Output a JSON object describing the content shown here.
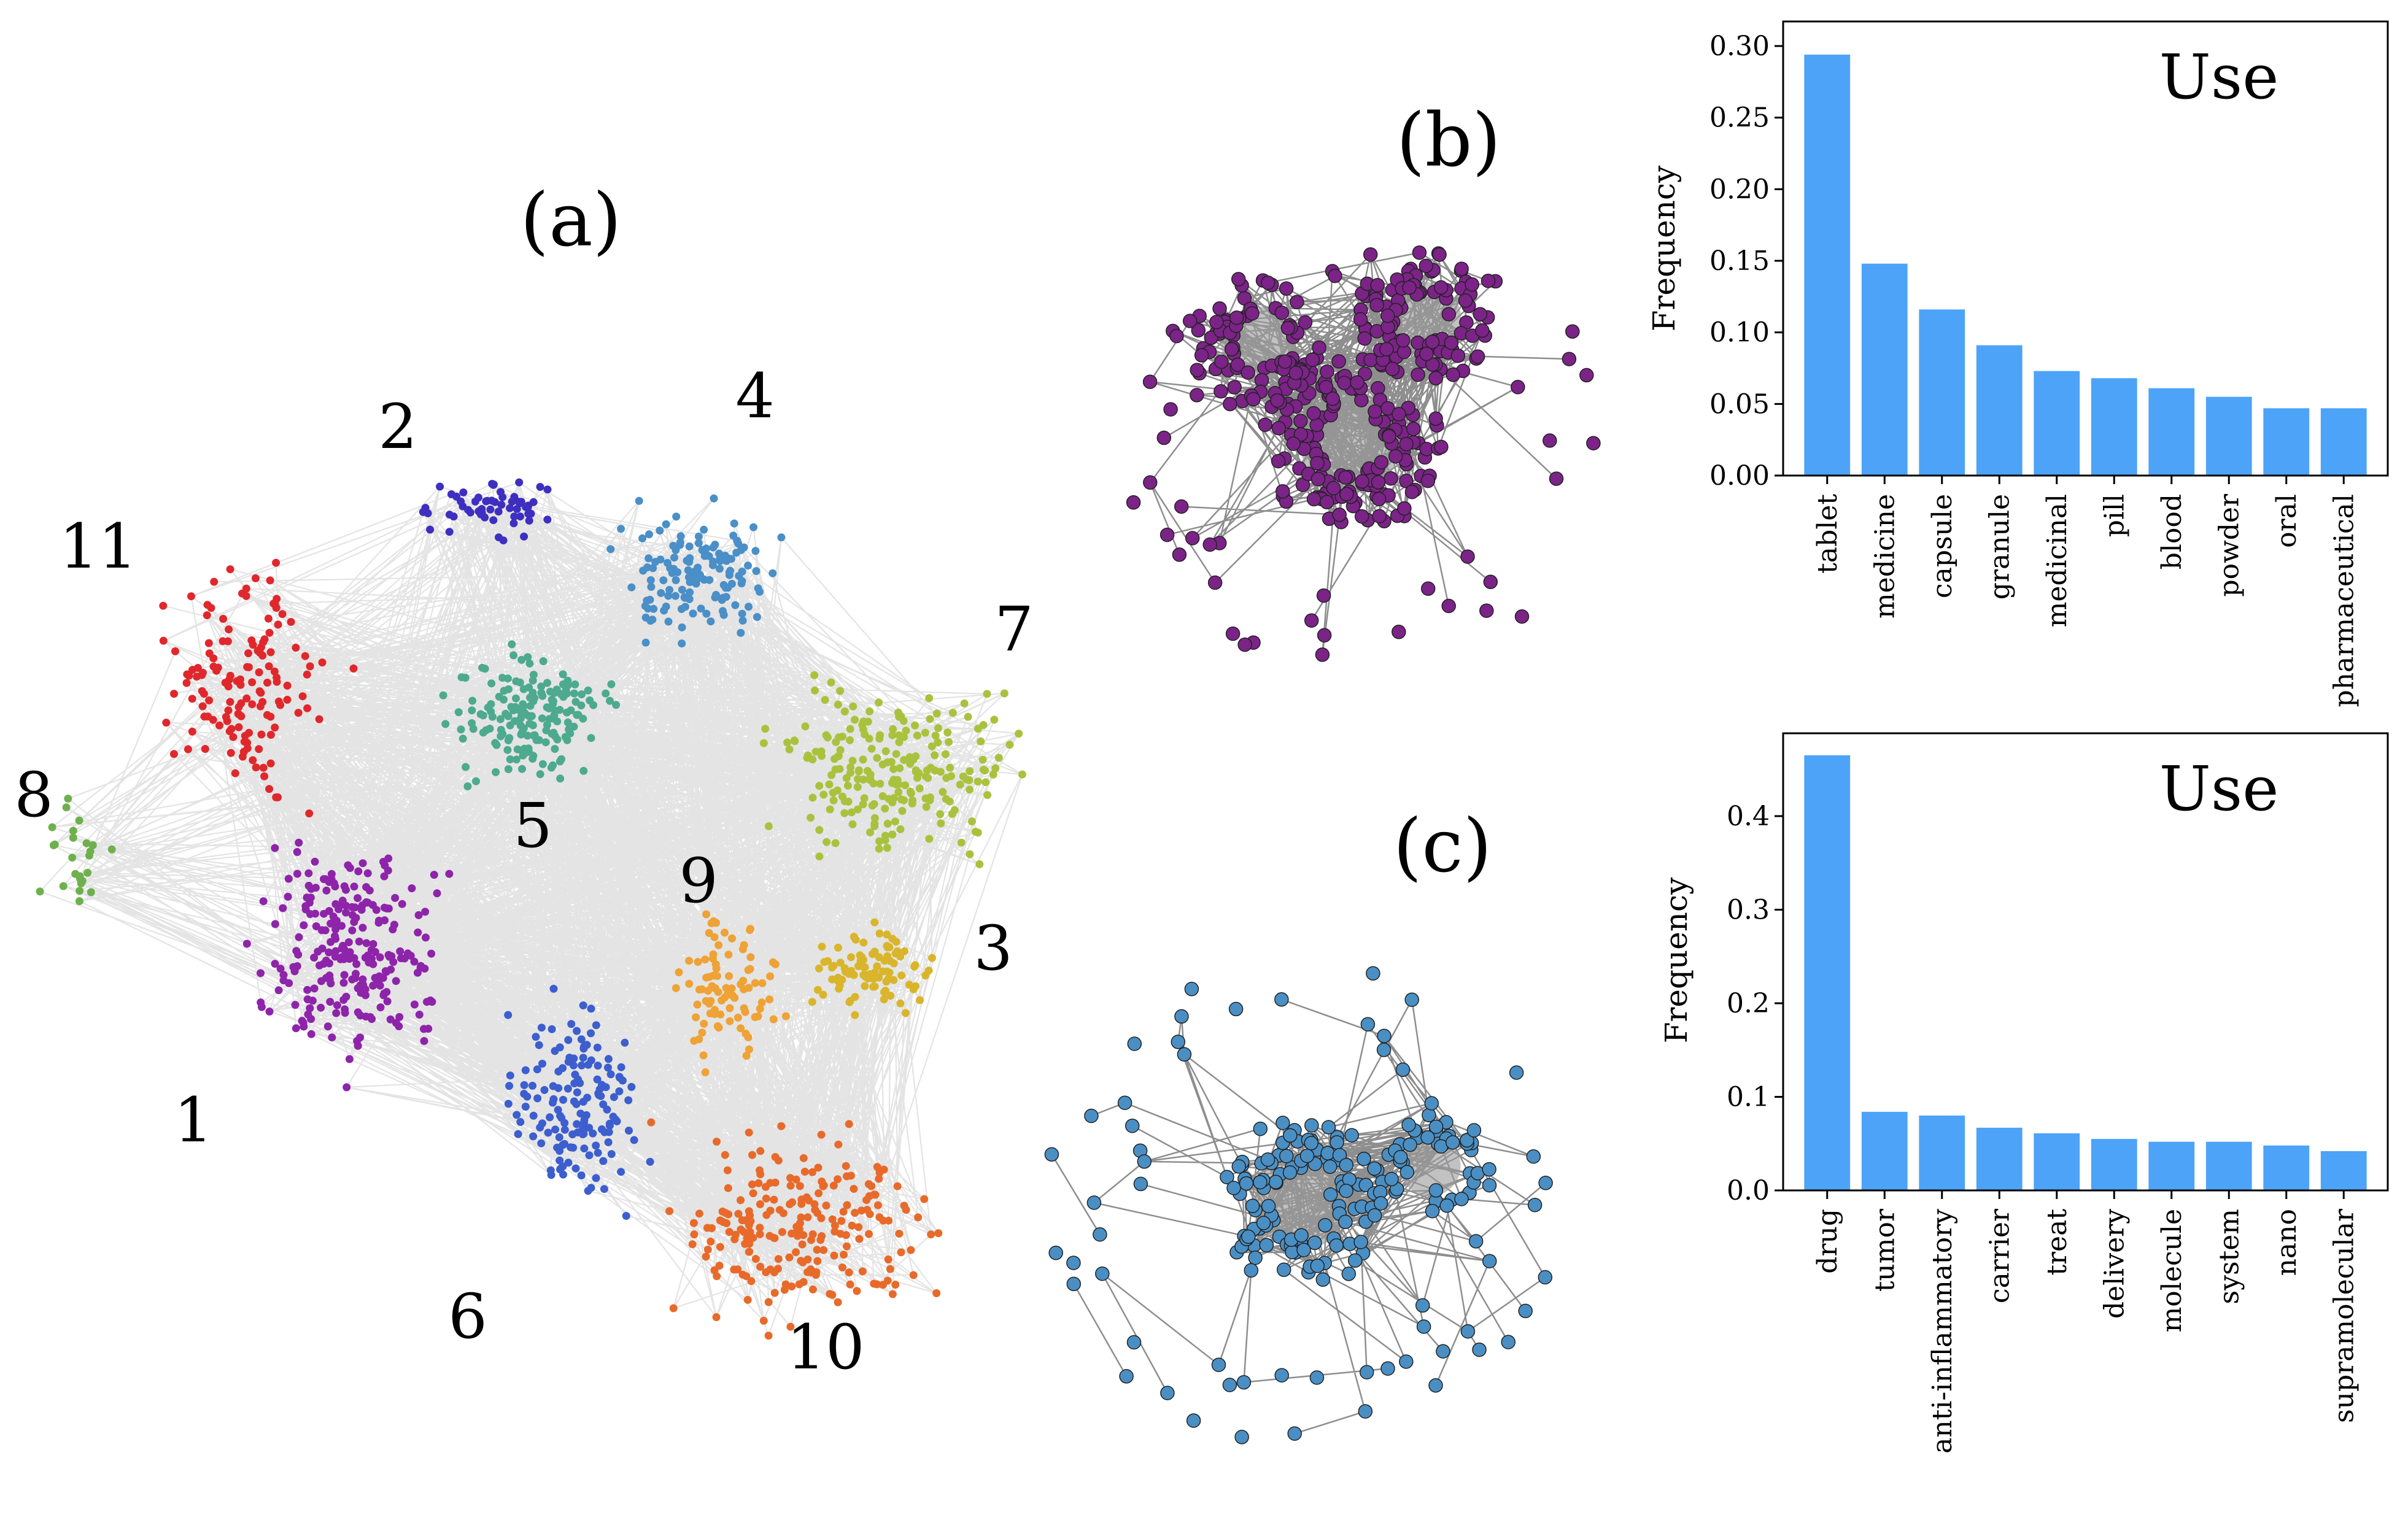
{
  "panels": {
    "a": {
      "label": "(a)"
    },
    "b": {
      "label": "(b)",
      "node_color": "#7B2387"
    },
    "c": {
      "label": "(c)",
      "node_color": "#4A8FC4"
    }
  },
  "clusters": [
    {
      "id": "1",
      "label": "1",
      "color": "#8E24AA"
    },
    {
      "id": "2",
      "label": "2",
      "color": "#3E2FC0"
    },
    {
      "id": "3",
      "label": "3",
      "color": "#D9B52C"
    },
    {
      "id": "4",
      "label": "4",
      "color": "#4A8FC8"
    },
    {
      "id": "5",
      "label": "5",
      "color": "#4DAA8E"
    },
    {
      "id": "6",
      "label": "6",
      "color": "#3C5ECF"
    },
    {
      "id": "7",
      "label": "7",
      "color": "#A9C23E"
    },
    {
      "id": "8",
      "label": "8",
      "color": "#6FB04E"
    },
    {
      "id": "9",
      "label": "9",
      "color": "#EFA235"
    },
    {
      "id": "10",
      "label": "10",
      "color": "#E86A2A"
    },
    {
      "id": "11",
      "label": "11",
      "color": "#E0282C"
    }
  ],
  "chart_data": [
    {
      "type": "bar",
      "title": "Use",
      "xlabel": "",
      "ylabel": "Frequency",
      "color": "#4DA3F7",
      "ylim": [
        0,
        0.31
      ],
      "yticks": [
        0.0,
        0.05,
        0.1,
        0.15,
        0.2,
        0.25,
        0.3
      ],
      "ytick_labels": [
        "0.00",
        "0.05",
        "0.10",
        "0.15",
        "0.20",
        "0.25",
        "0.30"
      ],
      "categories": [
        "tablet",
        "medicine",
        "capsule",
        "granule",
        "medicinal",
        "pill",
        "blood",
        "powder",
        "oral",
        "pharmaceutical"
      ],
      "values": [
        0.294,
        0.148,
        0.116,
        0.091,
        0.073,
        0.068,
        0.061,
        0.055,
        0.047,
        0.047
      ]
    },
    {
      "type": "bar",
      "title": "Use",
      "xlabel": "",
      "ylabel": "Frequency",
      "color": "#4DA3F7",
      "ylim": [
        0,
        0.5
      ],
      "yticks": [
        0.0,
        0.1,
        0.2,
        0.3,
        0.4
      ],
      "ytick_labels": [
        "0.0",
        "0.1",
        "0.2",
        "0.3",
        "0.4"
      ],
      "categories": [
        "drug",
        "tumor",
        "anti-inflammatory",
        "carrier",
        "treat",
        "delivery",
        "molecule",
        "system",
        "nano",
        "supramolecular"
      ],
      "values": [
        0.465,
        0.084,
        0.08,
        0.067,
        0.061,
        0.055,
        0.052,
        0.052,
        0.048,
        0.042
      ]
    }
  ]
}
